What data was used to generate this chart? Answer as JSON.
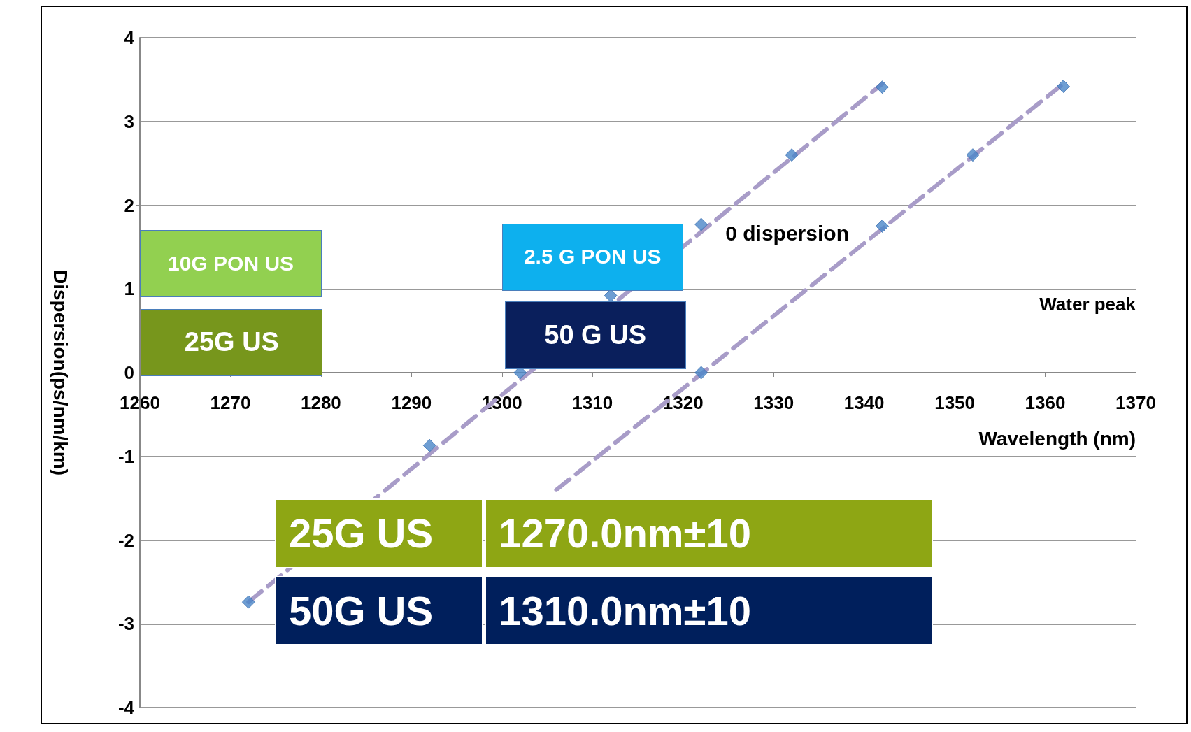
{
  "chart_data": {
    "type": "scatter",
    "xlabel": "Wavelength (nm)",
    "ylabel": "Dispersion(ps/nm/km)",
    "xlim": [
      1260,
      1370
    ],
    "xticks": [
      1260,
      1270,
      1280,
      1290,
      1300,
      1310,
      1320,
      1330,
      1340,
      1350,
      1360,
      1370
    ],
    "ylim": [
      -4,
      4
    ],
    "yticks": [
      -4,
      -3,
      -2,
      -1,
      0,
      1,
      2,
      3,
      4
    ],
    "grid": "y",
    "marker": "diamond",
    "series": [
      {
        "type": "line",
        "color": "#a89cc8",
        "line_style": "dashed",
        "marker": "none",
        "x": [
          1272,
          1342
        ],
        "values": [
          -2.74,
          3.45
        ]
      },
      {
        "type": "line",
        "color": "#a89cc8",
        "line_style": "dashed",
        "marker": "none",
        "x": [
          1306,
          1362
        ],
        "values": [
          -1.4,
          3.45
        ]
      },
      {
        "color": "#4a86c8",
        "x": [
          1272,
          1292,
          1302,
          1312,
          1322,
          1332,
          1342
        ],
        "values": [
          -2.74,
          -0.87,
          0,
          0.92,
          1.77,
          2.6,
          3.41
        ]
      },
      {
        "color": "#4a86c8",
        "x": [
          1322,
          1342,
          1352,
          1362
        ],
        "values": [
          0,
          1.75,
          2.6,
          3.42
        ]
      }
    ],
    "annotations": [
      "10G PON US",
      "25G US",
      "2.5 G PON US",
      "50 G US",
      "0 dispersion",
      "Water peak",
      "25G US",
      "1270.0nm±10",
      "50G US",
      "1310.0nm±10"
    ]
  }
}
